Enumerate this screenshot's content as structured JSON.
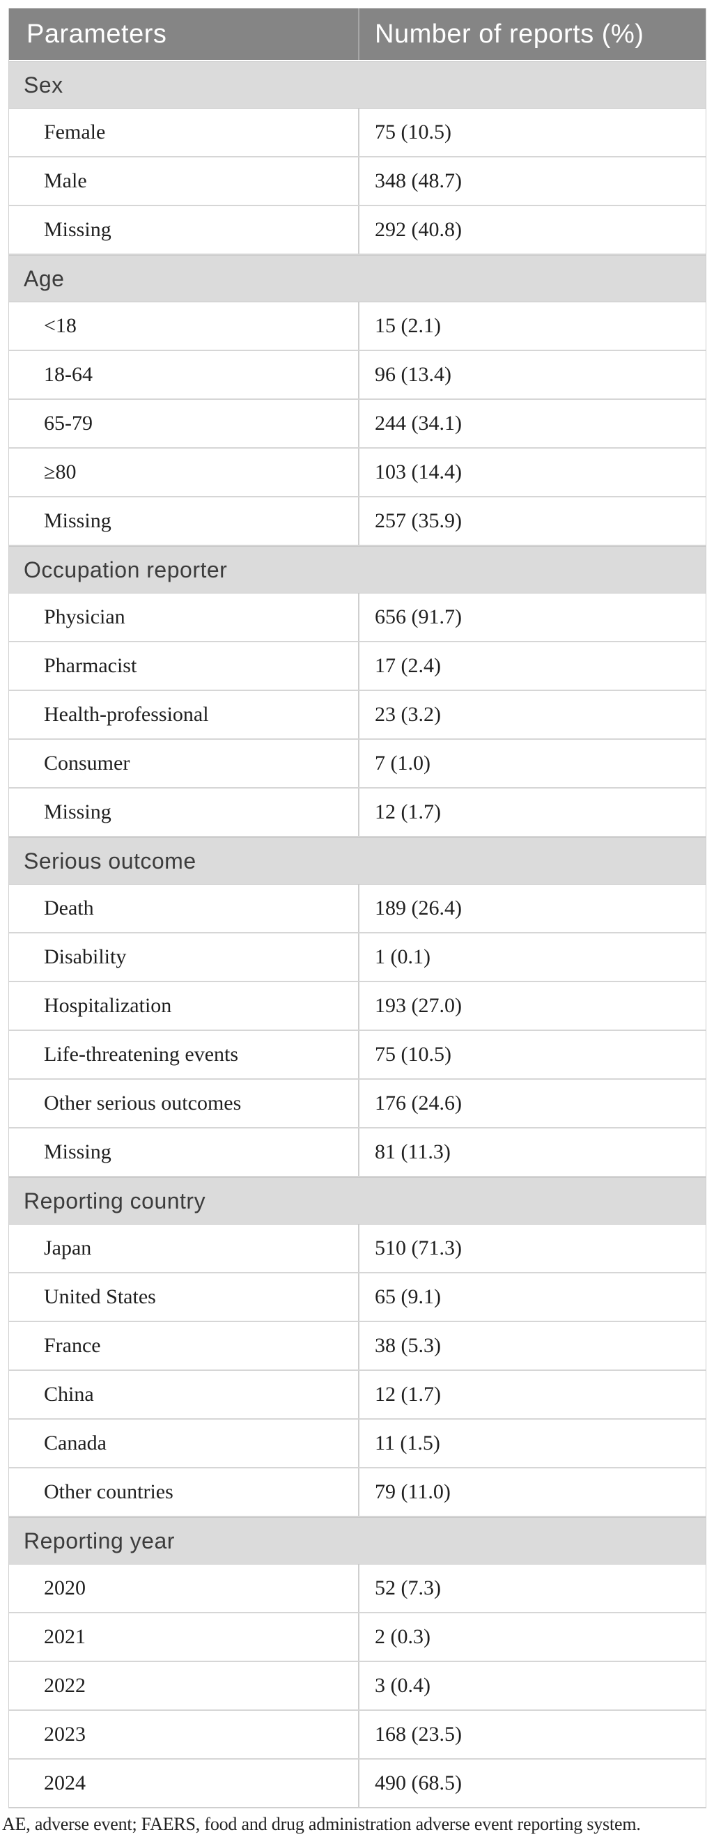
{
  "table": {
    "header": {
      "col1": "Parameters",
      "col2": "Number of reports (%)"
    },
    "sections": [
      {
        "label": "Sex",
        "rows": [
          {
            "parameter": "Female",
            "value": "75 (10.5)"
          },
          {
            "parameter": "Male",
            "value": "348 (48.7)"
          },
          {
            "parameter": "Missing",
            "value": "292 (40.8)"
          }
        ]
      },
      {
        "label": "Age",
        "rows": [
          {
            "parameter": "<18",
            "value": "15 (2.1)"
          },
          {
            "parameter": "18-64",
            "value": "96 (13.4)"
          },
          {
            "parameter": "65-79",
            "value": "244 (34.1)"
          },
          {
            "parameter": "≥80",
            "value": "103 (14.4)"
          },
          {
            "parameter": "Missing",
            "value": "257 (35.9)"
          }
        ]
      },
      {
        "label": "Occupation reporter",
        "rows": [
          {
            "parameter": "Physician",
            "value": "656 (91.7)"
          },
          {
            "parameter": "Pharmacist",
            "value": "17 (2.4)"
          },
          {
            "parameter": "Health-professional",
            "value": "23 (3.2)"
          },
          {
            "parameter": "Consumer",
            "value": "7 (1.0)"
          },
          {
            "parameter": "Missing",
            "value": "12 (1.7)"
          }
        ]
      },
      {
        "label": "Serious outcome",
        "rows": [
          {
            "parameter": "Death",
            "value": "189 (26.4)"
          },
          {
            "parameter": "Disability",
            "value": "1 (0.1)"
          },
          {
            "parameter": "Hospitalization",
            "value": "193 (27.0)"
          },
          {
            "parameter": "Life-threatening events",
            "value": "75 (10.5)"
          },
          {
            "parameter": "Other serious outcomes",
            "value": "176 (24.6)"
          },
          {
            "parameter": "Missing",
            "value": "81 (11.3)"
          }
        ]
      },
      {
        "label": "Reporting country",
        "rows": [
          {
            "parameter": "Japan",
            "value": "510 (71.3)"
          },
          {
            "parameter": "United States",
            "value": "65 (9.1)"
          },
          {
            "parameter": "France",
            "value": "38 (5.3)"
          },
          {
            "parameter": "China",
            "value": "12 (1.7)"
          },
          {
            "parameter": "Canada",
            "value": "11 (1.5)"
          },
          {
            "parameter": "Other countries",
            "value": "79 (11.0)"
          }
        ]
      },
      {
        "label": "Reporting year",
        "rows": [
          {
            "parameter": "2020",
            "value": "52 (7.3)"
          },
          {
            "parameter": "2021",
            "value": "2 (0.3)"
          },
          {
            "parameter": "2022",
            "value": "3 (0.4)"
          },
          {
            "parameter": "2023",
            "value": "168 (23.5)"
          },
          {
            "parameter": "2024",
            "value": "490 (68.5)"
          }
        ]
      }
    ],
    "footnote": "AE, adverse event; FAERS, food and drug administration adverse event reporting system."
  },
  "colors": {
    "header_bg": "#858585",
    "header_text": "#ffffff",
    "section_bg": "#dbdbdb",
    "section_text": "#3c3c3c",
    "row_border": "#cfcfcf",
    "data_text": "#1f1f1f"
  }
}
